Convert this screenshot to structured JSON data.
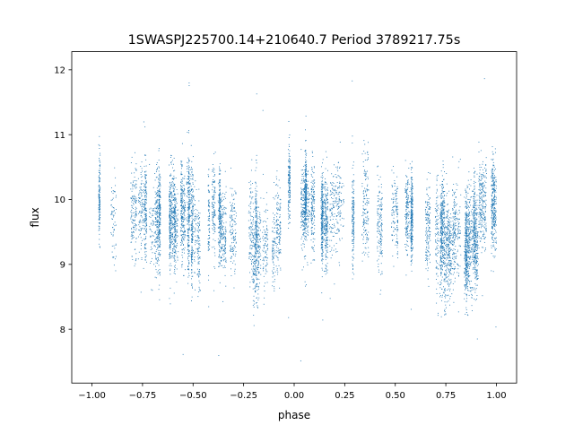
{
  "chart_data": {
    "type": "scatter",
    "title": "1SWASPJ225700.14+210640.7 Period 3789217.75s",
    "xlabel": "phase",
    "ylabel": "flux",
    "xlim": [
      -1.1,
      1.1
    ],
    "ylim": [
      7.17,
      12.28
    ],
    "grid": false,
    "legend": "none",
    "point_color": "#1f77b4",
    "x_ticks": [
      -1.0,
      -0.75,
      -0.5,
      -0.25,
      0.0,
      0.25,
      0.5,
      0.75,
      1.0
    ],
    "x_tick_labels": [
      "−1.00",
      "−0.75",
      "−0.50",
      "−0.25",
      "0.00",
      "0.25",
      "0.50",
      "0.75",
      "1.00"
    ],
    "y_ticks": [
      8,
      9,
      10,
      11,
      12
    ],
    "y_tick_labels": [
      "8",
      "9",
      "10",
      "11",
      "12"
    ],
    "profile": {
      "phase": [
        -1.0,
        -0.9,
        -0.8,
        -0.7,
        -0.6,
        -0.5,
        -0.4,
        -0.3,
        -0.2,
        -0.1,
        0.0,
        0.1,
        0.2,
        0.3,
        0.4,
        0.5,
        0.6,
        0.7,
        0.8,
        0.9,
        1.0
      ],
      "mean_flux": [
        10.0,
        9.85,
        9.8,
        9.85,
        9.75,
        9.6,
        9.7,
        9.5,
        9.35,
        9.5,
        10.0,
        9.85,
        9.8,
        9.85,
        9.75,
        9.6,
        9.7,
        9.5,
        9.35,
        9.5,
        10.0
      ],
      "spread": [
        0.3,
        0.32,
        0.35,
        0.38,
        0.36,
        0.3,
        0.32,
        0.35,
        0.38,
        0.34,
        0.3,
        0.32,
        0.35,
        0.38,
        0.36,
        0.3,
        0.32,
        0.35,
        0.38,
        0.34,
        0.3
      ]
    },
    "n_points": 9000
  }
}
